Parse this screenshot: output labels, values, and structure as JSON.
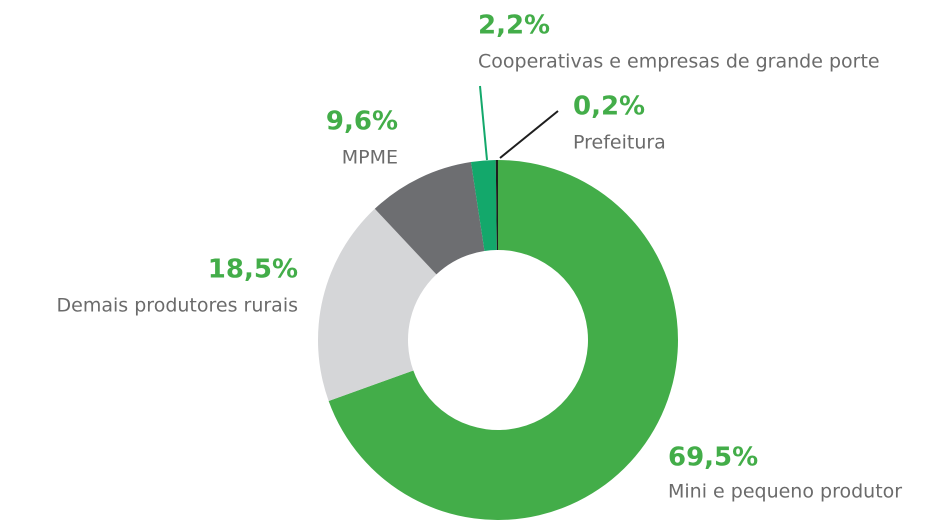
{
  "chart_data": {
    "type": "donut",
    "categories": [
      "Mini e pequeno produtor",
      "Demais produtores rurais",
      "MPME",
      "Cooperativas e empresas de grande porte",
      "Prefeitura"
    ],
    "values": [
      69.5,
      18.5,
      9.6,
      2.2,
      0.2
    ],
    "value_labels": [
      "69,5%",
      "18,5%",
      "9,6%",
      "2,2%",
      "0,2%"
    ],
    "colors": [
      "#43ad49",
      "#d5d6d8",
      "#6d6e71",
      "#13a86b",
      "#1e1e1e"
    ]
  }
}
